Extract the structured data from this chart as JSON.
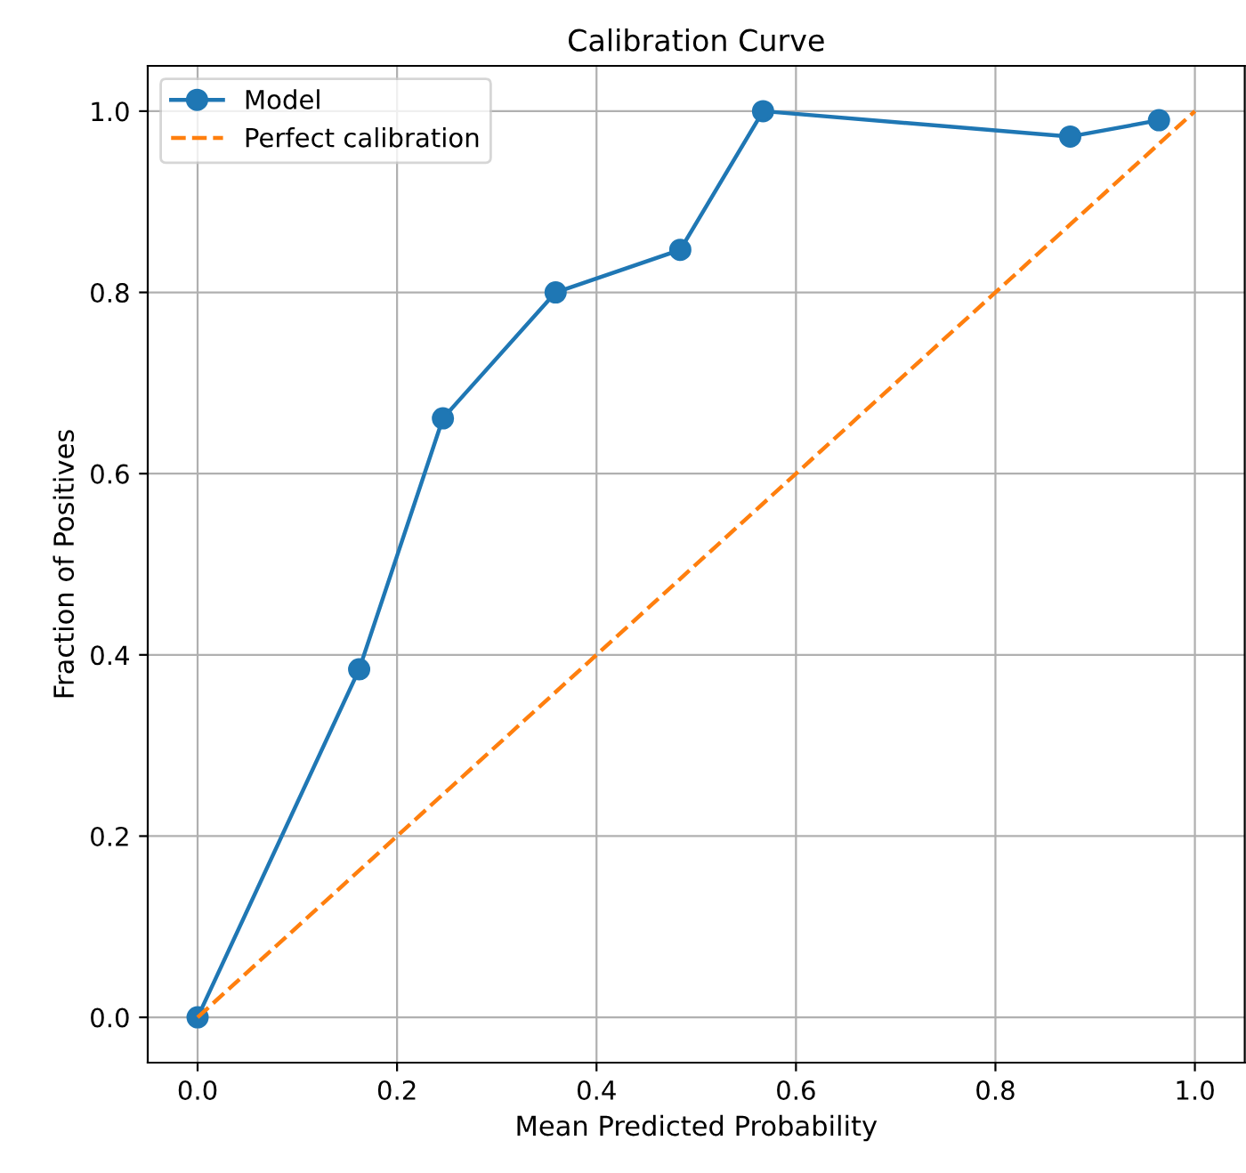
{
  "chart_data": {
    "type": "line",
    "title": "Calibration Curve",
    "xlabel": "Mean Predicted Probability",
    "ylabel": "Fraction of Positives",
    "series": [
      {
        "name": "Model",
        "color": "#1f77b4",
        "marker": "circle",
        "line_style": "solid",
        "x": [
          0.0,
          0.162,
          0.246,
          0.359,
          0.484,
          0.567,
          0.875,
          0.964
        ],
        "values": [
          0.0,
          0.384,
          0.661,
          0.8,
          0.847,
          1.0,
          0.972,
          0.99
        ]
      },
      {
        "name": "Perfect calibration",
        "color": "#ff7f0e",
        "marker": "none",
        "line_style": "dashed",
        "x": [
          0,
          1
        ],
        "values": [
          0,
          1
        ]
      }
    ],
    "xlim": [
      -0.05,
      1.05
    ],
    "ylim": [
      -0.05,
      1.05
    ],
    "xticks": [
      {
        "value": 0,
        "label": "0.0"
      },
      0.2,
      0.4,
      0.6,
      0.8,
      {
        "value": 1,
        "label": "1.0"
      }
    ],
    "yticks": [
      {
        "value": 0,
        "label": "0.0"
      },
      0.2,
      0.4,
      0.6,
      0.8,
      {
        "value": 1,
        "label": "1.0"
      }
    ],
    "grid": true,
    "legend": "top left"
  }
}
